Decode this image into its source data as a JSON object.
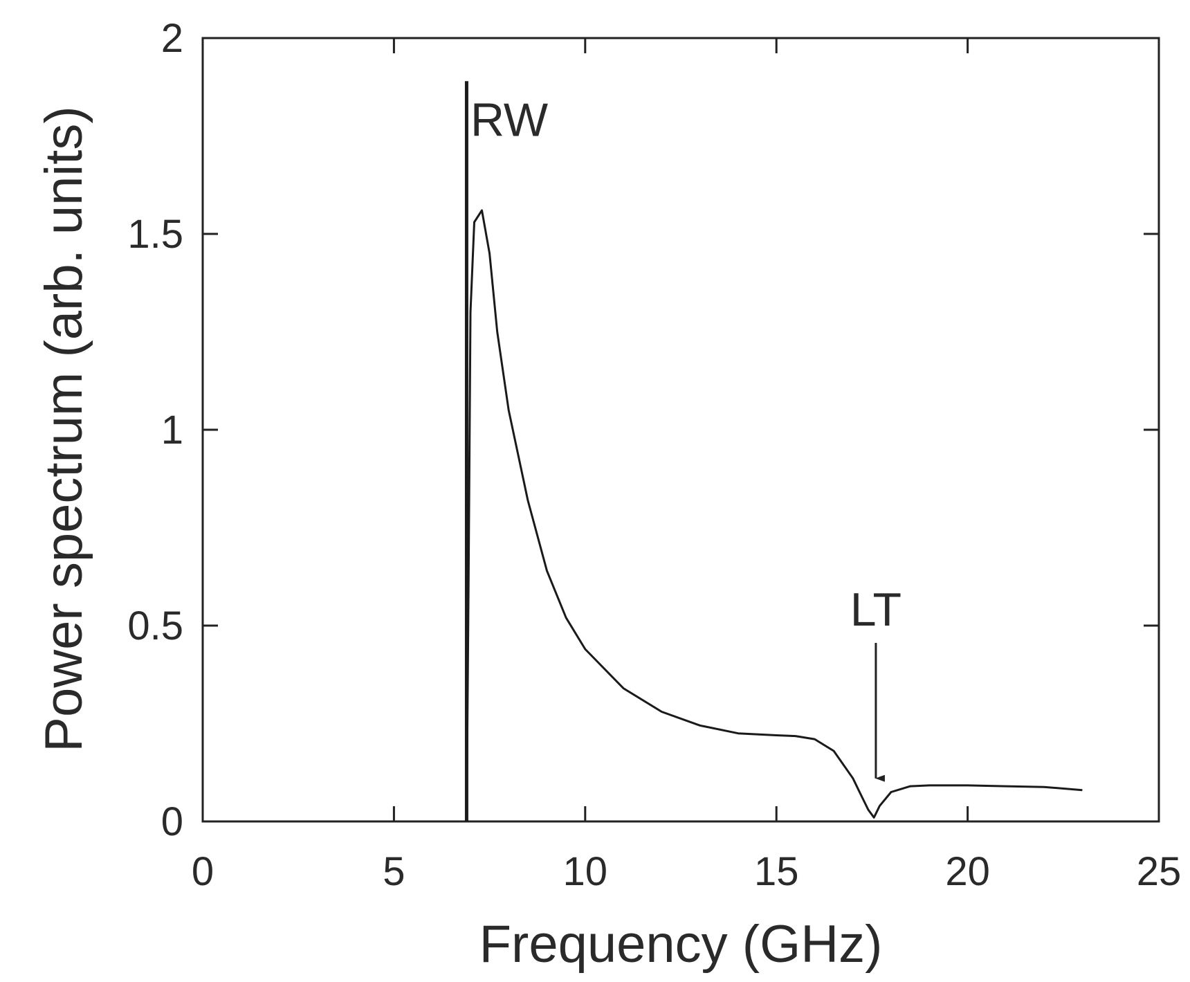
{
  "chart_data": {
    "type": "line",
    "title": "",
    "xlabel": "Frequency (GHz)",
    "ylabel": "Power spectrum (arb. units)",
    "xlim": [
      0,
      25
    ],
    "ylim": [
      0,
      2
    ],
    "xticks": [
      0,
      5,
      10,
      15,
      20,
      25
    ],
    "yticks": [
      0,
      0.5,
      1,
      1.5,
      2
    ],
    "xtick_labels": [
      "0",
      "5",
      "10",
      "15",
      "20",
      "25"
    ],
    "ytick_labels": [
      "0",
      "0.5",
      "1",
      "1.5",
      "2"
    ],
    "grid": false,
    "colors": {
      "line": "#1a1a1a",
      "axis": "#222222"
    },
    "series": [
      {
        "x": [
          6.9,
          6.95,
          7.0,
          7.1,
          7.3,
          7.5,
          7.7,
          8.0,
          8.5,
          9.0,
          9.5,
          10.0,
          11.0,
          12.0,
          13.0,
          14.0,
          15.0,
          15.5,
          16.0,
          16.5,
          17.0,
          17.2,
          17.4,
          17.55,
          17.7,
          18.0,
          18.5,
          19.0,
          20.0,
          21.0,
          22.0,
          23.0
        ],
        "y": [
          0.0,
          0.6,
          1.3,
          1.53,
          1.56,
          1.45,
          1.25,
          1.05,
          0.82,
          0.64,
          0.52,
          0.44,
          0.34,
          0.28,
          0.245,
          0.225,
          0.22,
          0.218,
          0.21,
          0.18,
          0.11,
          0.07,
          0.03,
          0.01,
          0.04,
          0.075,
          0.09,
          0.092,
          0.092,
          0.09,
          0.088,
          0.08
        ]
      }
    ],
    "spike": {
      "x": 6.9,
      "y_top": 1.89
    },
    "annotations": [
      {
        "text": "RW",
        "x": 7.0,
        "y": 1.75
      },
      {
        "text": "LT",
        "x": 17.6,
        "y": 0.5,
        "arrow_to": [
          17.6,
          0.11
        ]
      }
    ]
  }
}
